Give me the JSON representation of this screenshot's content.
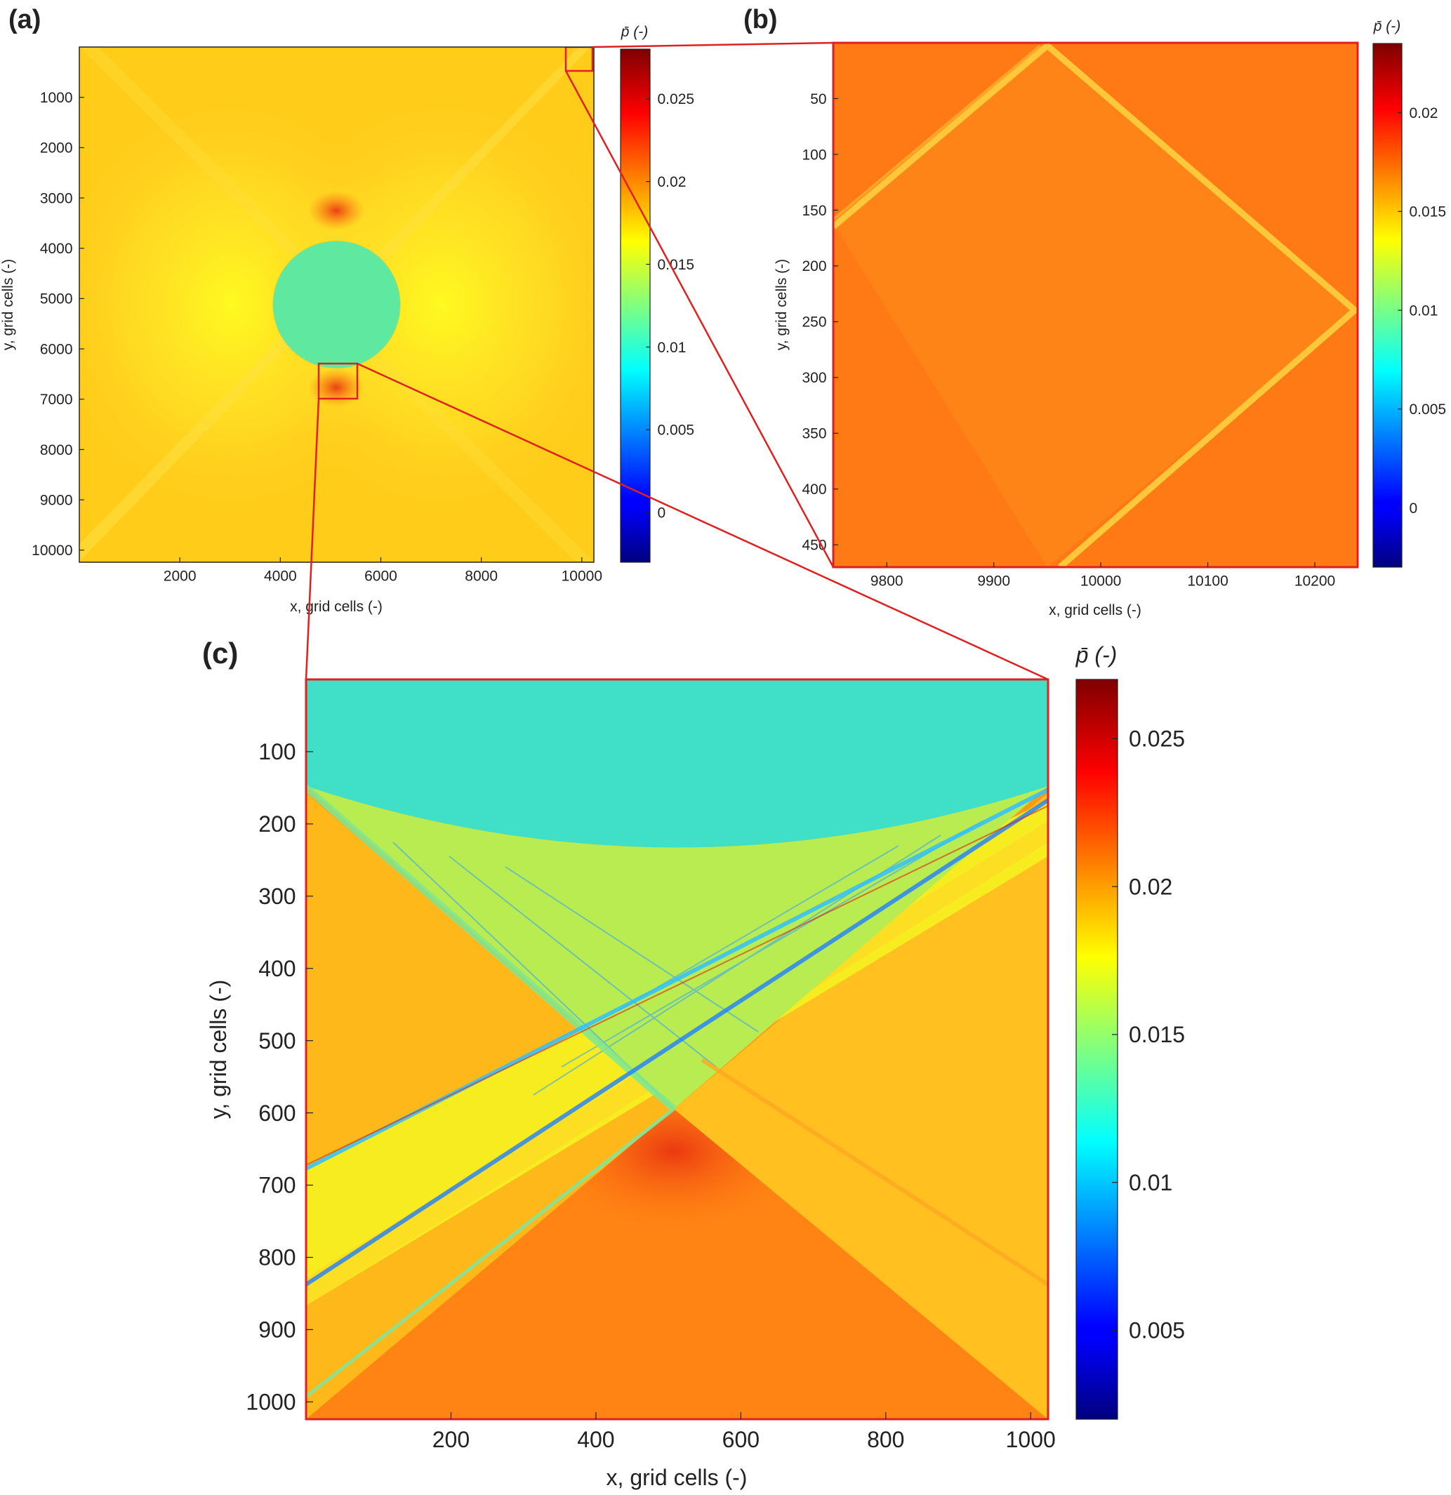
{
  "figure": {
    "panels": [
      {
        "id": "a",
        "panel_label": "(a)",
        "xlabel": "x, grid cells (-)",
        "ylabel": "y, grid cells (-)",
        "colorbar_label": "p̄ (-)",
        "xticks": [
          "2000",
          "4000",
          "6000",
          "8000",
          "10000"
        ],
        "yticks": [
          "1000",
          "2000",
          "3000",
          "4000",
          "5000",
          "6000",
          "7000",
          "8000",
          "9000",
          "10000"
        ],
        "cticks": [
          "0",
          "0.005",
          "0.01",
          "0.015",
          "0.02",
          "0.025"
        ]
      },
      {
        "id": "b",
        "panel_label": "(b)",
        "xlabel": "x, grid cells (-)",
        "ylabel": "y, grid cells (-)",
        "colorbar_label": "p̄ (-)",
        "xticks": [
          "9800",
          "9900",
          "10000",
          "10100",
          "10200"
        ],
        "yticks": [
          "50",
          "100",
          "150",
          "200",
          "250",
          "300",
          "350",
          "400",
          "450"
        ],
        "cticks": [
          "0",
          "0.005",
          "0.01",
          "0.015",
          "0.02"
        ]
      },
      {
        "id": "c",
        "panel_label": "(c)",
        "xlabel": "x, grid cells (-)",
        "ylabel": "y, grid cells (-)",
        "colorbar_label": "p̄ (-)",
        "xticks": [
          "200",
          "400",
          "600",
          "800",
          "1000"
        ],
        "yticks": [
          "100",
          "200",
          "300",
          "400",
          "500",
          "600",
          "700",
          "800",
          "900",
          "1000"
        ],
        "cticks": [
          "0.005",
          "0.01",
          "0.015",
          "0.02",
          "0.025"
        ]
      }
    ]
  },
  "chart_data": [
    {
      "type": "heatmap",
      "panel": "(a)",
      "title": "",
      "xlabel": "x, grid cells (-)",
      "ylabel": "y, grid cells (-)",
      "colorbar_label": "p̄ (-)",
      "colormap": "jet",
      "xlim": [
        0,
        10240
      ],
      "ylim": [
        10240,
        0
      ],
      "clim": [
        -0.003,
        0.028
      ],
      "xticks": [
        2000,
        4000,
        6000,
        8000,
        10000
      ],
      "yticks": [
        1000,
        2000,
        3000,
        4000,
        5000,
        6000,
        7000,
        8000,
        9000,
        10000
      ],
      "cticks": [
        0,
        0.005,
        0.01,
        0.015,
        0.02,
        0.025
      ],
      "features": {
        "background_value": 0.019,
        "inclusion_circle": {
          "center": [
            5120,
            5120
          ],
          "radius": 1270,
          "value": 0.0125
        },
        "zoom_boxes": [
          {
            "target": "(b)",
            "x": [
              9760,
              10240
            ],
            "y": [
              0,
              480
            ]
          },
          {
            "target": "(c)",
            "x": [
              4608,
              5632
            ],
            "y": [
              6260,
              7280
            ]
          }
        ]
      }
    },
    {
      "type": "heatmap",
      "panel": "(b)",
      "title": "",
      "xlabel": "x, grid cells (-)",
      "ylabel": "y, grid cells (-)",
      "colorbar_label": "p̄ (-)",
      "colormap": "jet",
      "xlim": [
        9750,
        10240
      ],
      "ylim": [
        470,
        0
      ],
      "clim": [
        -0.003,
        0.0235
      ],
      "xticks": [
        9800,
        9900,
        10000,
        10100,
        10200
      ],
      "yticks": [
        50,
        100,
        150,
        200,
        250,
        300,
        350,
        400,
        450
      ],
      "cticks": [
        0,
        0.005,
        0.01,
        0.015,
        0.02
      ],
      "features": {
        "background_value": 0.019,
        "diagonal_band_value": 0.0165,
        "diamond_vertices": [
          [
            9950,
            0
          ],
          [
            10235,
            240
          ],
          [
            9950,
            480
          ],
          [
            9750,
            165
          ]
        ]
      }
    },
    {
      "type": "heatmap",
      "panel": "(c)",
      "title": "",
      "xlabel": "x, grid cells (-)",
      "ylabel": "y, grid cells (-)",
      "colorbar_label": "p̄ (-)",
      "colormap": "jet",
      "xlim": [
        0,
        1024
      ],
      "ylim": [
        1024,
        0
      ],
      "clim": [
        0.002,
        0.027
      ],
      "xticks": [
        200,
        400,
        600,
        800,
        1000
      ],
      "yticks": [
        100,
        200,
        300,
        400,
        500,
        600,
        700,
        800,
        900,
        1000
      ],
      "cticks": [
        0.005,
        0.01,
        0.015,
        0.02,
        0.025
      ],
      "features": {
        "inclusion_value": 0.0115,
        "background_value": 0.019,
        "inclusion_boundary_y_at_center": 255,
        "bands": [
          {
            "from": [
              0,
              150
            ],
            "to": [
              512,
              590
            ],
            "value": 0.015
          },
          {
            "from": [
              1024,
              155
            ],
            "to": [
              0,
              660
            ],
            "value": 0.012
          },
          {
            "from": [
              1024,
              170
            ],
            "to": [
              0,
              830
            ],
            "value": 0.011
          },
          {
            "from": [
              512,
              590
            ],
            "to": [
              0,
              965
            ],
            "value": 0.016
          }
        ]
      }
    }
  ]
}
